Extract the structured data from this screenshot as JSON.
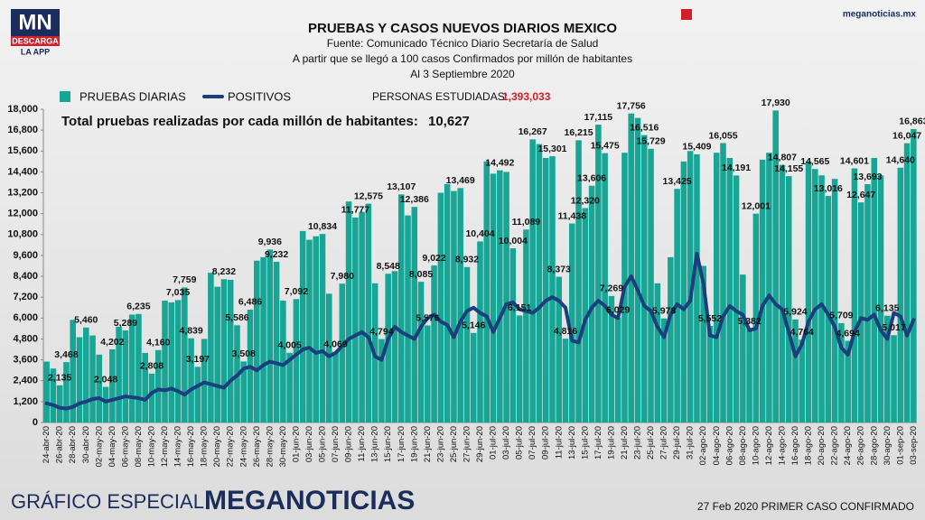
{
  "header": {
    "logo": "MN",
    "logo_sub1": "DESCARGA",
    "logo_sub2": "LA APP",
    "site": "meganoticias.mx"
  },
  "footer": {
    "left": "GRÁFICO ESPECIAL",
    "brand": "MEGANOTICIAS",
    "note": "27 Feb 2020 PRIMER CASO CONFIRMADO"
  },
  "chart_data": {
    "type": "bar",
    "title": "PRUEBAS Y CASOS NUEVOS DIARIOS MEXICO",
    "subtitle": [
      "Fuente: Comunicado Técnico Diario Secretaría de Salud",
      "A partir que se llegó a 100 casos Confirmados por millón de habitantes",
      "Al 3 Septiembre 2020"
    ],
    "annotations": {
      "studied_label": "PERSONAS ESTUDIADAS:",
      "studied_value": "1,393,033",
      "per_million_label": "Total pruebas realizadas por cada millón de habitantes:",
      "per_million_value": "10,627"
    },
    "categories": [
      "24-abr-20",
      null,
      "26-abr-20",
      null,
      "28-abr-20",
      null,
      "30-abr-20",
      null,
      "02-may-20",
      null,
      "04-may-20",
      null,
      "06-may-20",
      null,
      "08-may-20",
      null,
      "10-may-20",
      null,
      "12-may-20",
      null,
      "14-may-20",
      null,
      "16-may-20",
      null,
      "18-may-20",
      null,
      "20-may-20",
      null,
      "22-may-20",
      null,
      "24-may-20",
      null,
      "26-may-20",
      null,
      "28-may-20",
      null,
      "30-may-20",
      null,
      "01-jun-20",
      null,
      "03-jun-20",
      null,
      "05-jun-20",
      null,
      "07-jun-20",
      null,
      "09-jun-20",
      null,
      "11-jun-20",
      null,
      "13-jun-20",
      null,
      "15-jun-20",
      null,
      "17-jun-20",
      null,
      "19-jun-20",
      null,
      "21-jun-20",
      null,
      "23-jun-20",
      null,
      "25-jun-20",
      null,
      "27-jun-20",
      null,
      "29-jun-20",
      null,
      "01-jul-20",
      null,
      "03-jul-20",
      null,
      "05-jul-20",
      null,
      "07-jul-20",
      null,
      "09-jul-20",
      null,
      "11-jul-20",
      null,
      "13-jul-20",
      null,
      "15-jul-20",
      null,
      "17-jul-20",
      null,
      "19-jul-20",
      null,
      "21-jul-20",
      null,
      "23-jul-20",
      null,
      "25-jul-20",
      null,
      "27-jul-20",
      null,
      "29-jul-20",
      null,
      "31-jul-20",
      null,
      "02-ago-20",
      null,
      "04-ago-20",
      null,
      "06-ago-20",
      null,
      "08-ago-20",
      null,
      "10-ago-20",
      null,
      "12-ago-20",
      null,
      "14-ago-20",
      null,
      "16-ago-20",
      null,
      "18-ago-20",
      null,
      "20-ago-20",
      null,
      "22-ago-20",
      null,
      "24-ago-20",
      null,
      "26-ago-20",
      null,
      "28-ago-20",
      null,
      "30-ago-20",
      null,
      "01-sep-20",
      null,
      "03-sep-20"
    ],
    "series": [
      {
        "name": "PRUEBAS DIARIAS",
        "type": "bar",
        "color": "#17a596",
        "values": [
          3500,
          3100,
          2135,
          3468,
          5900,
          4900,
          5460,
          5000,
          3900,
          2048,
          4202,
          5500,
          5289,
          6200,
          6235,
          4000,
          2808,
          4160,
          7000,
          6900,
          7035,
          7759,
          4839,
          3197,
          4800,
          8600,
          7800,
          8232,
          8200,
          5586,
          3508,
          6486,
          9300,
          9500,
          9936,
          9232,
          7000,
          4005,
          7092,
          11000,
          10500,
          10700,
          10834,
          7400,
          4069,
          7980,
          12700,
          11777,
          12100,
          12575,
          8000,
          4794,
          8548,
          8700,
          13107,
          11900,
          12386,
          8085,
          5576,
          9022,
          13200,
          13700,
          13300,
          13469,
          8932,
          5146,
          10404,
          15000,
          14300,
          14492,
          14400,
          10004,
          6151,
          11089,
          16267,
          16000,
          15200,
          15301,
          8373,
          4816,
          11438,
          16215,
          12320,
          13606,
          17115,
          15475,
          7269,
          6029,
          15500,
          17756,
          17500,
          16516,
          15729,
          8000,
          5978,
          9500,
          13425,
          15000,
          15600,
          15409,
          9000,
          5552,
          15500,
          16055,
          15200,
          14191,
          8500,
          5382,
          12001,
          15100,
          15500,
          17930,
          14807,
          14155,
          5924,
          4764,
          15000,
          14565,
          14200,
          13016,
          14000,
          5709,
          4694,
          14601,
          12647,
          13693,
          15200,
          14200,
          6135,
          5017,
          14640,
          16047,
          16863
        ],
        "value_labels": [
          null,
          null,
          "2,135",
          "3,468",
          null,
          null,
          "5,460",
          null,
          null,
          "2,048",
          "4,202",
          null,
          "5,289",
          null,
          "6,235",
          null,
          "2,808",
          "4,160",
          null,
          null,
          "7,035",
          "7,759",
          "4,839",
          "3,197",
          null,
          null,
          null,
          "8,232",
          null,
          "5,586",
          "3,508",
          "6,486",
          null,
          null,
          "9,936",
          "9,232",
          null,
          "4,005",
          "7,092",
          null,
          null,
          null,
          "10,834",
          null,
          "4,069",
          "7,980",
          null,
          "11,777",
          null,
          "12,575",
          null,
          "4,794",
          "8,548",
          null,
          "13,107",
          null,
          "12,386",
          "8,085",
          "5,576",
          "9,022",
          null,
          null,
          null,
          "13,469",
          "8,932",
          "5,146",
          "10,404",
          null,
          null,
          "14,492",
          null,
          "10,004",
          "6,151",
          "11,089",
          "16,267",
          null,
          null,
          "15,301",
          "8,373",
          "4,816",
          "11,438",
          "16,215",
          "12,320",
          "13,606",
          "17,115",
          "15,475",
          "7,269",
          "6,029",
          null,
          "17,756",
          null,
          "16,516",
          "15,729",
          null,
          "5,978",
          null,
          "13,425",
          null,
          null,
          "15,409",
          null,
          "5,552",
          null,
          "16,055",
          null,
          "14,191",
          null,
          "5,382",
          "12,001",
          null,
          null,
          "17,930",
          "14,807",
          "14,155",
          "5,924",
          "4,764",
          null,
          "14,565",
          null,
          "13,016",
          null,
          "5,709",
          "4,694",
          "14,601",
          "12,647",
          "13,693",
          null,
          null,
          "6,135",
          "5,017",
          "14,640",
          "16,047",
          "16,863"
        ]
      },
      {
        "name": "POSITIVOS",
        "type": "line",
        "color": "#1b3f7c",
        "values": [
          1100,
          1000,
          850,
          800,
          900,
          1100,
          1200,
          1350,
          1400,
          1200,
          1300,
          1400,
          1500,
          1450,
          1400,
          1300,
          1700,
          1900,
          1850,
          1950,
          1800,
          1600,
          1900,
          2100,
          2300,
          2200,
          2100,
          2000,
          2400,
          2700,
          3100,
          3200,
          3000,
          3300,
          3500,
          3400,
          3300,
          3600,
          3900,
          4200,
          4300,
          4000,
          4100,
          3800,
          4000,
          4400,
          4800,
          5000,
          5200,
          4900,
          3800,
          3600,
          4800,
          5500,
          5200,
          5000,
          4800,
          5500,
          6000,
          6200,
          5800,
          5600,
          4900,
          5800,
          6400,
          6600,
          6300,
          6100,
          5200,
          6000,
          6800,
          6900,
          6500,
          6400,
          6300,
          6600,
          7000,
          7200,
          7000,
          6600,
          4700,
          4600,
          5900,
          6600,
          7000,
          6700,
          6200,
          6000,
          7800,
          8400,
          7600,
          6700,
          6400,
          5500,
          4900,
          6200,
          6800,
          6500,
          7000,
          9700,
          8000,
          5000,
          4900,
          6100,
          6700,
          6400,
          6200,
          5300,
          5400,
          6700,
          7300,
          6800,
          6500,
          5200,
          3800,
          4500,
          5800,
          6500,
          6800,
          6200,
          5500,
          4300,
          3900,
          5200,
          6000,
          5900,
          6200,
          5300,
          4800,
          6300,
          6100,
          5000,
          5900
        ]
      }
    ],
    "ylim": [
      0,
      18000
    ],
    "yticks": [
      0,
      {
        "value": 1200,
        "label": "1,200"
      },
      {
        "value": 2400,
        "label": "2,400"
      },
      {
        "value": 3600,
        "label": "3,600"
      },
      {
        "value": 4800,
        "label": "4,800"
      },
      {
        "value": 6000,
        "label": "6,000"
      },
      {
        "value": 7200,
        "label": "7,200"
      },
      {
        "value": 8400,
        "label": "8,400"
      },
      {
        "value": 9600,
        "label": "9,600"
      },
      {
        "value": 10800,
        "label": "10,800"
      },
      {
        "value": 12000,
        "label": "12,000"
      },
      {
        "value": 13200,
        "label": "13,200"
      },
      {
        "value": 14400,
        "label": "14,400"
      },
      {
        "value": 15600,
        "label": "15,600"
      },
      {
        "value": 16800,
        "label": "16,800"
      },
      {
        "value": 18000,
        "label": "18,000"
      }
    ],
    "grid": false
  }
}
